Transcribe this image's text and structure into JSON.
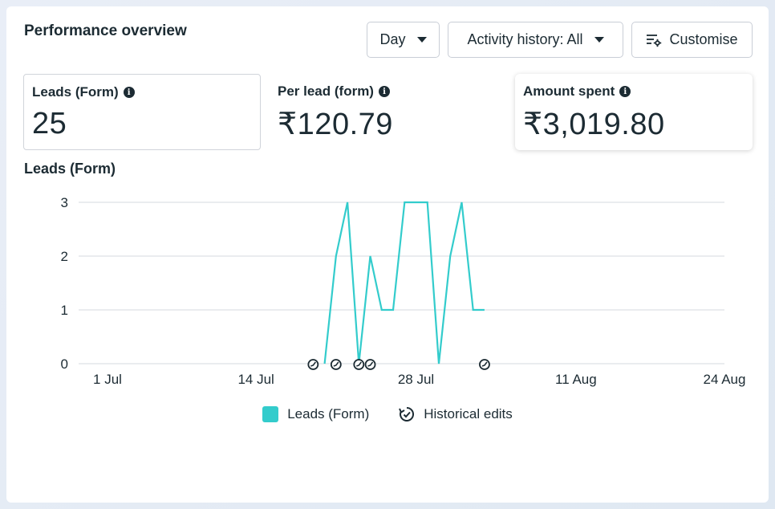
{
  "header": {
    "title": "Performance overview",
    "day_label": "Day",
    "activity_label": "Activity history: All",
    "customise_label": "Customise"
  },
  "metrics": [
    {
      "label": "Leads (Form)",
      "value": "25"
    },
    {
      "label": "Per lead (form)",
      "value": "₹120.79"
    },
    {
      "label": "Amount spent",
      "value": "₹3,019.80"
    }
  ],
  "chart_title": "Leads (Form)",
  "legend": {
    "series_label": "Leads (Form)",
    "edits_label": "Historical edits"
  },
  "colors": {
    "series": "#33cccc",
    "text": "#1c2b33",
    "grid": "#e3e6ea"
  },
  "chart_data": {
    "type": "line",
    "x_ticks": [
      "1 Jul",
      "14 Jul",
      "28 Jul",
      "11 Aug",
      "24 Aug"
    ],
    "x_tick_days": [
      1,
      14,
      28,
      42,
      55
    ],
    "y_ticks": [
      "0",
      "1",
      "2",
      "3"
    ],
    "ylim": [
      0,
      3
    ],
    "series": [
      {
        "name": "Leads (Form)",
        "x_days": [
          20,
          21,
          22,
          23,
          24,
          25,
          26,
          27,
          28,
          29,
          30,
          31,
          32,
          33,
          34
        ],
        "values": [
          0,
          2,
          3,
          0,
          2,
          1,
          1,
          3,
          3,
          3,
          0,
          2,
          3,
          1,
          1
        ]
      }
    ],
    "historical_edit_days": [
      19,
      21,
      23,
      24,
      34
    ]
  }
}
